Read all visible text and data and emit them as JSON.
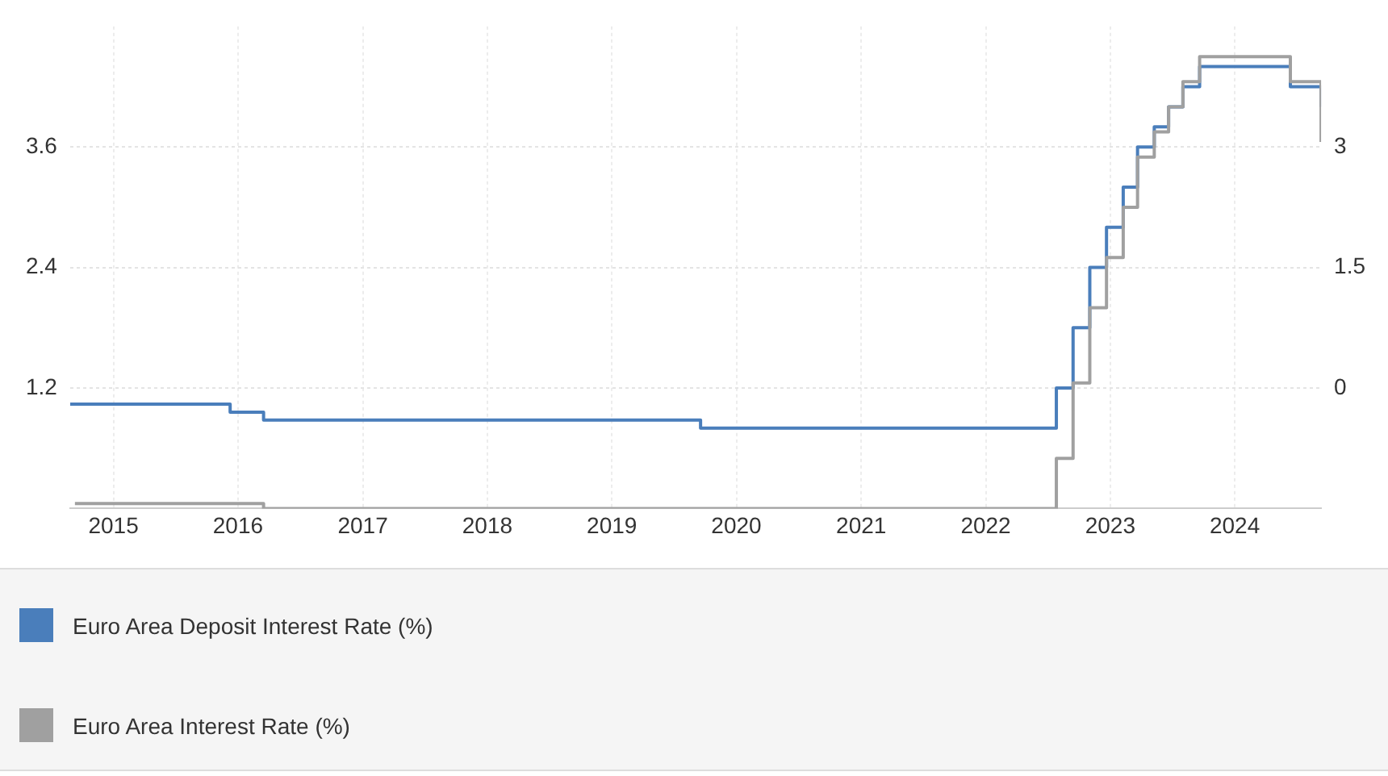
{
  "chart_data": {
    "type": "step",
    "xlim": [
      "2014-08-27",
      "2024-09-10"
    ],
    "xticks": [
      "2015",
      "2016",
      "2017",
      "2018",
      "2019",
      "2020",
      "2021",
      "2022",
      "2023",
      "2024"
    ],
    "ylim": [
      0,
      4.8
    ],
    "yticks": [
      1.2,
      2.4,
      3.6
    ],
    "y2lim": [
      -1.5,
      4.5
    ],
    "y2ticks": [
      0,
      1.5,
      3
    ],
    "grid": true,
    "legend": "bottom",
    "line_style": "solid",
    "marker": "none",
    "series": [
      {
        "name": "Euro Area Deposit Interest Rate (%)",
        "color": "#4a7ebb",
        "axis": "y2",
        "x": [
          "2014-08-27",
          "2015-12-09",
          "2016-03-16",
          "2019-09-18",
          "2022-07-27",
          "2022-09-14",
          "2022-11-02",
          "2022-12-21",
          "2023-02-08",
          "2023-03-22",
          "2023-05-10",
          "2023-06-21",
          "2023-08-02",
          "2023-09-20",
          "2024-06-12",
          "2024-09-10"
        ],
        "values": [
          -0.2,
          -0.3,
          -0.4,
          -0.5,
          0,
          0.75,
          1.5,
          2.0,
          2.5,
          3.0,
          3.25,
          3.5,
          3.75,
          4.0,
          3.75,
          3.5
        ]
      },
      {
        "name": "Euro Area Interest Rate (%)",
        "color": "#a0a0a0",
        "x": [
          "2014-09-10",
          "2016-03-16",
          "2022-07-27",
          "2022-09-14",
          "2022-11-02",
          "2022-12-21",
          "2023-02-08",
          "2023-03-22",
          "2023-05-10",
          "2023-06-21",
          "2023-08-02",
          "2023-09-20",
          "2024-06-12",
          "2024-09-10"
        ],
        "values": [
          0.05,
          0,
          0.5,
          1.25,
          2.0,
          2.5,
          3.0,
          3.5,
          3.75,
          4.0,
          4.25,
          4.5,
          4.25,
          3.65
        ]
      }
    ]
  }
}
